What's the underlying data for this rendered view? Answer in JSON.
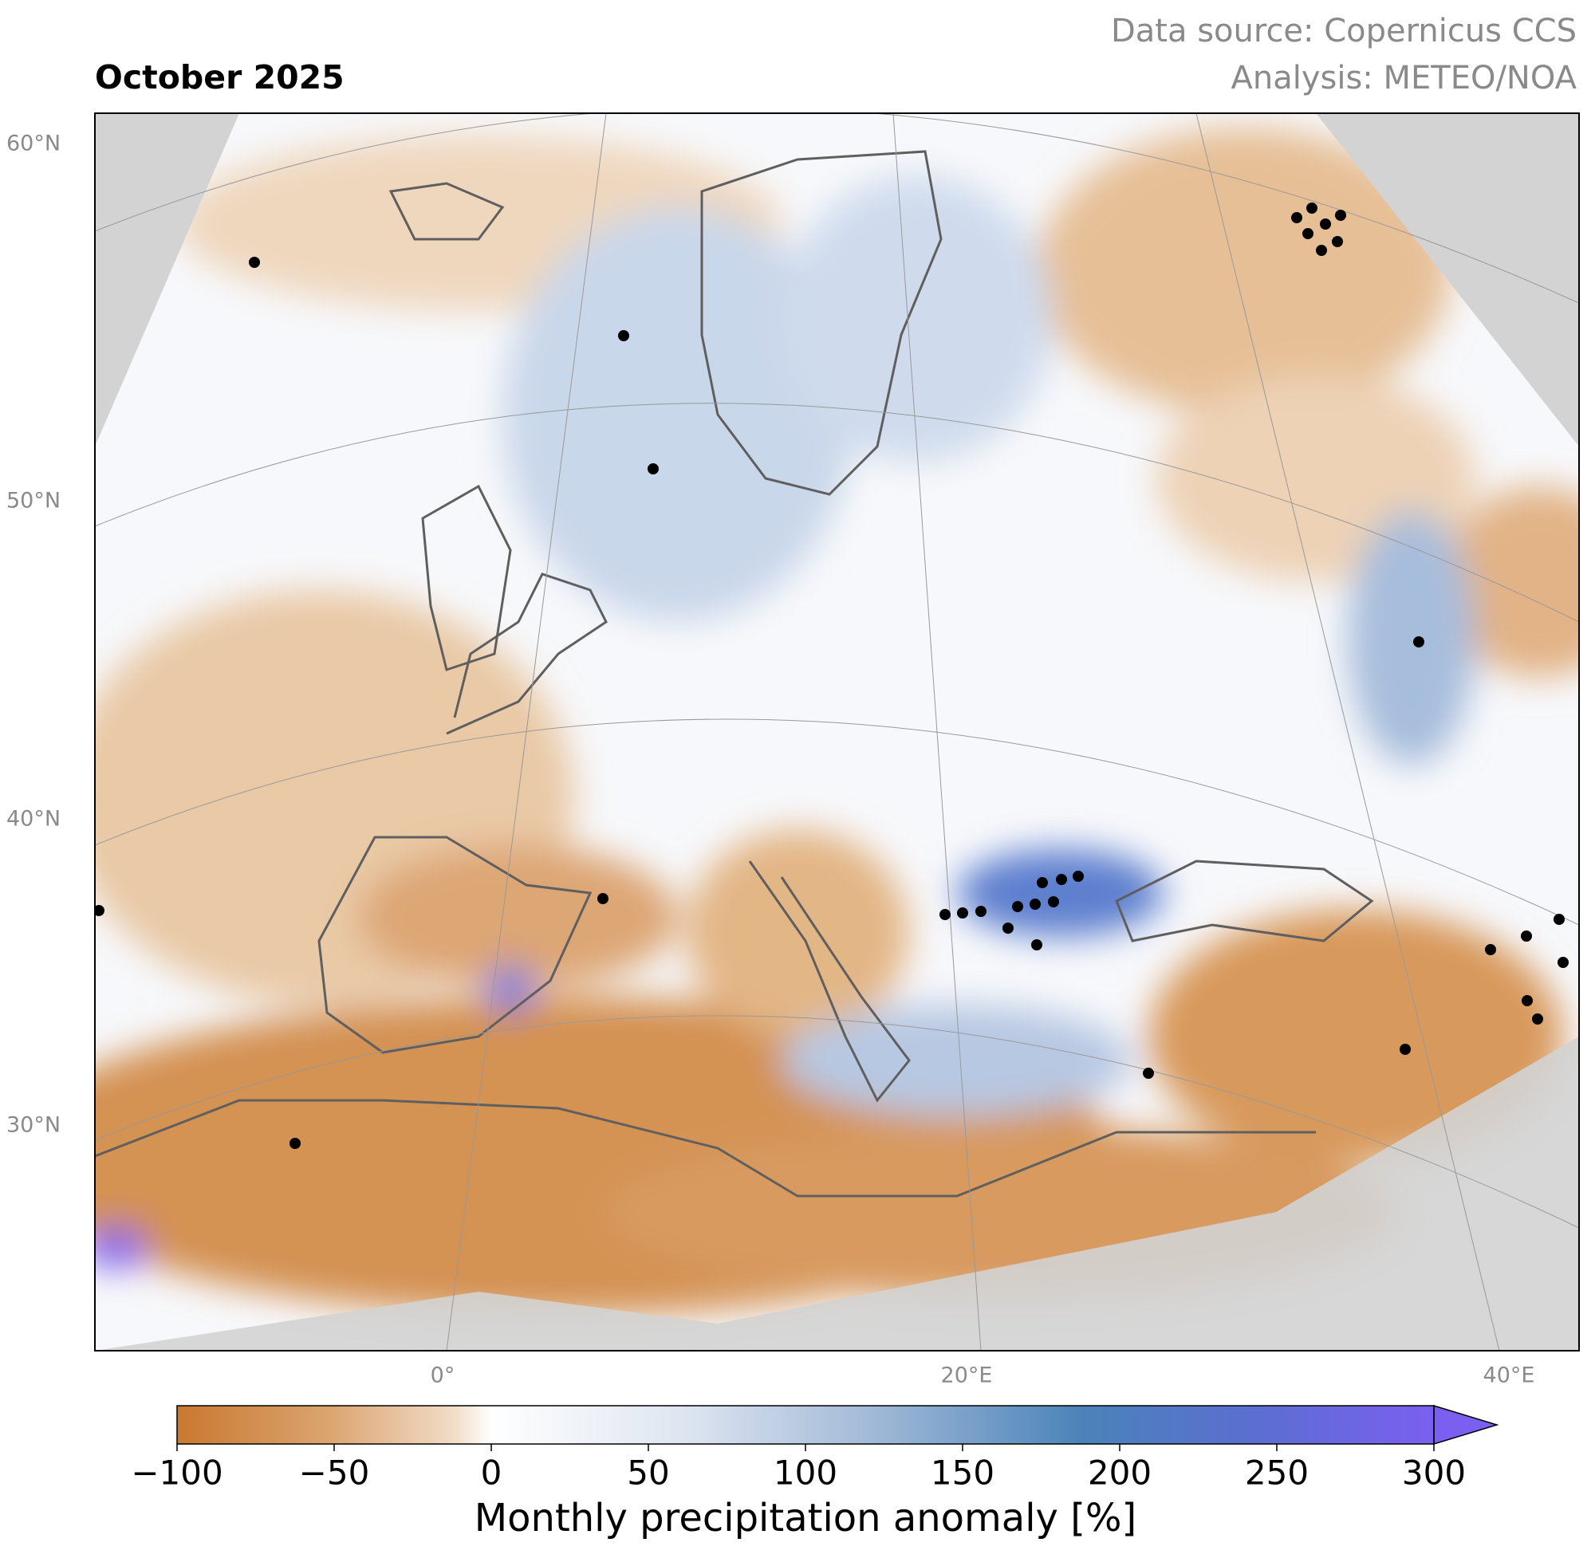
{
  "header": {
    "title": "October 2025",
    "source": "Data source: Copernicus CCS",
    "analysis": "Analysis: METEO/NOA"
  },
  "map": {
    "lat_labels": [
      "60°N",
      "50°N",
      "40°N",
      "30°N"
    ],
    "lon_labels": [
      "0°",
      "20°E",
      "40°E"
    ]
  },
  "colorbar": {
    "label": "Monthly precipitation anomaly [%]",
    "lim": [
      -100,
      300
    ],
    "ticks": [
      {
        "value": -100,
        "label": "−100"
      },
      {
        "value": -50,
        "label": "−50"
      },
      0,
      50,
      100,
      150,
      200,
      250,
      300
    ]
  }
}
